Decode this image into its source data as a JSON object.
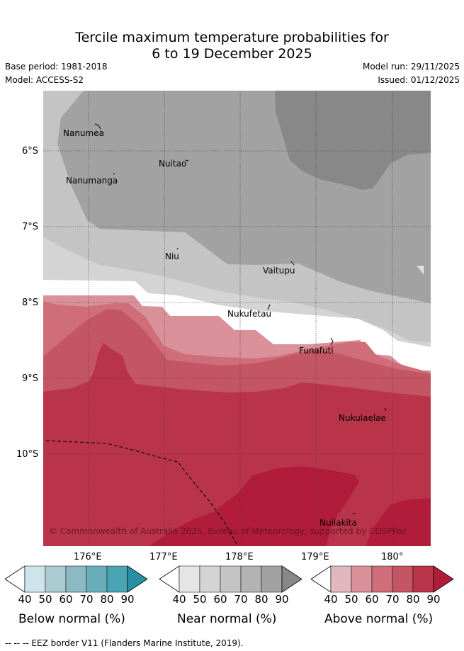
{
  "title": {
    "line1": "Tercile maximum temperature probabilities for",
    "line2": "6 to 19 December 2025"
  },
  "meta": {
    "base_period": "Base period: 1981-2018",
    "model": "Model: ACCESS-S2",
    "model_run": "Model run: 29/11/2025",
    "issued": "Issued: 01/12/2025"
  },
  "map": {
    "lat_labels": [
      "6°S",
      "7°S",
      "8°S",
      "9°S",
      "10°S"
    ],
    "lon_labels": [
      "176°E",
      "177°E",
      "178°E",
      "179°E",
      "180°"
    ],
    "places": [
      "Nanumea",
      "Nuitao",
      "Nanumanga",
      "Niu",
      "Vaitupu",
      "Nukufetau",
      "Funafuti",
      "Nukulaelae",
      "Nuilakita"
    ],
    "copyright": "© Commonwealth of Australia 2025, Bureau of Meteorology, supported by COSPPac"
  },
  "colorbars": [
    {
      "label": "Below normal (%)",
      "ticks": [
        "40",
        "50",
        "60",
        "70",
        "80",
        "90"
      ],
      "colors": [
        "#ffffff",
        "#cde4ea",
        "#abcbd1",
        "#8bb9c4",
        "#6aaebc",
        "#4aa3b2",
        "#2a8fa3"
      ]
    },
    {
      "label": "Near normal (%)",
      "ticks": [
        "40",
        "50",
        "60",
        "70",
        "80",
        "90"
      ],
      "colors": [
        "#ffffff",
        "#e5e5e5",
        "#d4d4d4",
        "#c4c4c4",
        "#b3b3b3",
        "#a2a2a2",
        "#888888"
      ]
    },
    {
      "label": "Above normal (%)",
      "ticks": [
        "40",
        "50",
        "60",
        "70",
        "80",
        "90"
      ],
      "colors": [
        "#ffffff",
        "#e2b8bf",
        "#d99099",
        "#cf6e79",
        "#c45562",
        "#b93449",
        "#b01c3a"
      ]
    }
  ],
  "footer": {
    "eez": "--  --  -- EEZ border V11 (Flanders Marine Institute, 2019)."
  }
}
